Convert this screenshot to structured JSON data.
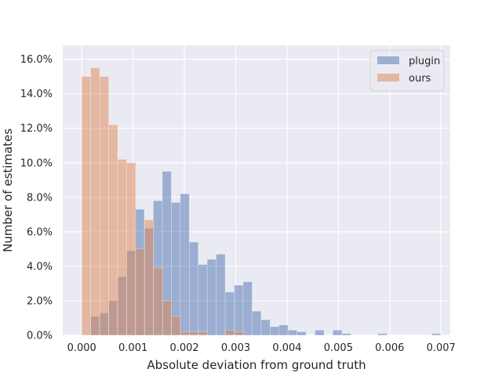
{
  "chart_data": {
    "type": "bar",
    "subtype": "overlaid-histogram",
    "title": "",
    "xlabel": "Absolute deviation from ground truth",
    "ylabel": "Number of estimates",
    "xlim": [
      -0.00037,
      0.00718
    ],
    "ylim": [
      0,
      0.168
    ],
    "x_ticks": [
      0.0,
      0.001,
      0.002,
      0.003,
      0.004,
      0.005,
      0.006,
      0.007
    ],
    "x_tick_labels": [
      "0.000",
      "0.001",
      "0.002",
      "0.003",
      "0.004",
      "0.005",
      "0.006",
      "0.007"
    ],
    "y_ticks": [
      0.0,
      0.02,
      0.04,
      0.06,
      0.08,
      0.1,
      0.12,
      0.14,
      0.16
    ],
    "y_tick_labels": [
      "0.0%",
      "2.0%",
      "4.0%",
      "6.0%",
      "8.0%",
      "10.0%",
      "12.0%",
      "14.0%",
      "16.0%"
    ],
    "grid": true,
    "legend_position": "top-right",
    "series": [
      {
        "name": "plugin",
        "color": "#4c72b0",
        "opacity": 0.5,
        "bin_start": 0.00017,
        "bin_width": 0.000175,
        "values": [
          0.011,
          0.013,
          0.02,
          0.034,
          0.049,
          0.073,
          0.062,
          0.078,
          0.095,
          0.077,
          0.082,
          0.054,
          0.041,
          0.044,
          0.047,
          0.025,
          0.029,
          0.031,
          0.014,
          0.009,
          0.005,
          0.006,
          0.003,
          0.002,
          0.0,
          0.003,
          0.0,
          0.003,
          0.001,
          0.0,
          0.0,
          0.0,
          0.001,
          0.0,
          0.0,
          0.0,
          0.0,
          0.0,
          0.001
        ]
      },
      {
        "name": "ours",
        "color": "#dd8452",
        "opacity": 0.5,
        "bin_start": 0.0,
        "bin_width": 0.000175,
        "values": [
          0.15,
          0.155,
          0.15,
          0.122,
          0.102,
          0.1,
          0.05,
          0.067,
          0.039,
          0.02,
          0.011,
          0.002,
          0.002,
          0.002,
          0.0,
          0.0,
          0.003,
          0.002
        ]
      }
    ]
  }
}
